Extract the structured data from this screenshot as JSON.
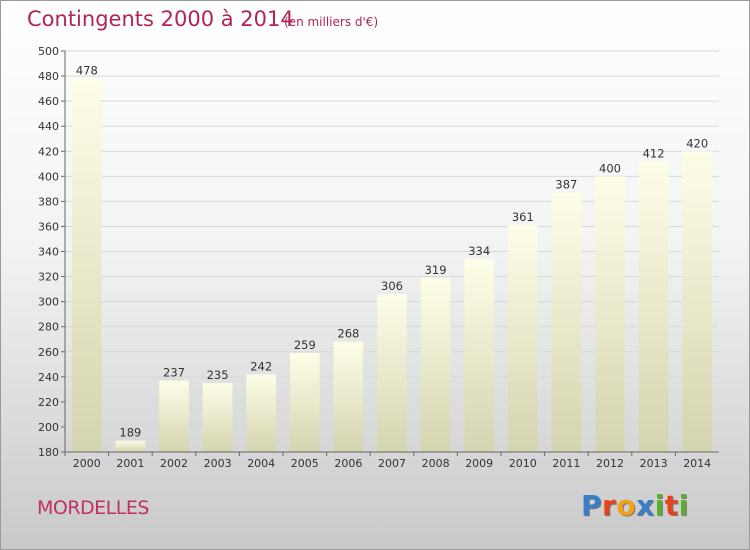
{
  "title": "Contingents 2000 à 2014",
  "subtitle": "(en milliers d'€)",
  "commune": "MORDELLES",
  "brand": {
    "name": "Proxiti",
    "letter_colors": [
      "#3a7ec8",
      "#e8431d",
      "#f0a319",
      "#3a7ec8",
      "#5cae2d",
      "#e8431d",
      "#5cae2d"
    ]
  },
  "chart_data": {
    "type": "bar",
    "categories": [
      "2000",
      "2001",
      "2002",
      "2003",
      "2004",
      "2005",
      "2006",
      "2007",
      "2008",
      "2009",
      "2010",
      "2011",
      "2012",
      "2013",
      "2014"
    ],
    "values": [
      478,
      189,
      237,
      235,
      242,
      259,
      268,
      306,
      319,
      334,
      361,
      387,
      400,
      412,
      420
    ],
    "title": "Contingents 2000 à 2014",
    "xlabel": "",
    "ylabel": "",
    "ylim": [
      180,
      500
    ],
    "yticks": [
      180,
      200,
      220,
      240,
      260,
      280,
      300,
      320,
      340,
      360,
      380,
      400,
      420,
      440,
      460,
      480,
      500
    ],
    "grid": true,
    "data_labels": true,
    "bar_gradient": [
      "#fefee8",
      "#d4d4b0"
    ]
  }
}
